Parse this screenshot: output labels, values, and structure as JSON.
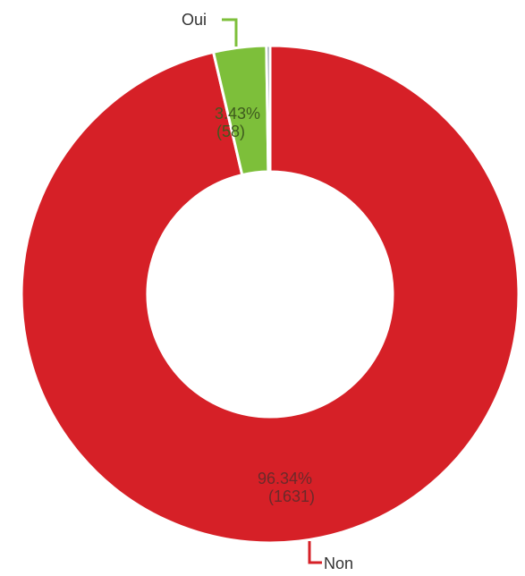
{
  "chart_data": {
    "type": "pie",
    "donut": true,
    "categories": [
      "Oui",
      "Non",
      ""
    ],
    "values": [
      58,
      1631,
      4
    ],
    "percent_labels": [
      "3.43%",
      "96.34%",
      ""
    ],
    "count_labels": [
      "(58)",
      "(1631)",
      ""
    ],
    "colors": [
      "#7dbf3a",
      "#d62027",
      "#7a8a99"
    ],
    "title": ""
  }
}
